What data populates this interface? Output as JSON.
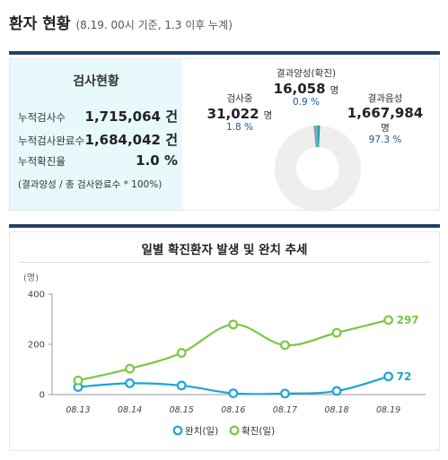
{
  "header": {
    "title": "환자 현황",
    "subtitle": "(8.19. 00시 기준, 1.3 이후 누계)"
  },
  "test_status": {
    "title": "검사현황",
    "rows": [
      {
        "label": "누적검사수",
        "value": "1,715,064 건"
      },
      {
        "label": "누적검사완료수",
        "value": "1,684,042 건"
      },
      {
        "label": "누적확진율",
        "value": "1.0 %"
      }
    ],
    "note": "(결과양성 / 총 검사완료수 * 100%)"
  },
  "donut": {
    "positive": {
      "label": "결과양성(확진)",
      "value": "16,058",
      "unit": "명",
      "pct": "0.9 %",
      "share": 0.9,
      "color": "#13a3c6"
    },
    "testing": {
      "label": "검사중",
      "value": "31,022",
      "unit": "명",
      "pct": "1.8 %",
      "share": 1.8,
      "color": "#8fa1a7"
    },
    "negative": {
      "label": "결과음성",
      "value": "1,667,984",
      "unit": "명",
      "pct": "97.3 %",
      "share": 97.3,
      "color": "#eeeeee"
    }
  },
  "chart_data": {
    "type": "line",
    "title": "일별 확진환자 발생 및 완치 추세",
    "ylabel": "(명)",
    "ylim": [
      0,
      400
    ],
    "yticks": [
      "0",
      "200",
      "400"
    ],
    "categories": [
      "08.13",
      "08.14",
      "08.15",
      "08.16",
      "08.17",
      "08.18",
      "08.19"
    ],
    "series": [
      {
        "name": "완치(일)",
        "color": "#1aa6d4",
        "values": [
          30,
          45,
          36,
          5,
          4,
          14,
          72
        ],
        "end_label": "72"
      },
      {
        "name": "확진(일)",
        "color": "#79c843",
        "values": [
          56,
          103,
          166,
          279,
          197,
          246,
          297
        ],
        "end_label": "297"
      }
    ],
    "grid": false,
    "legend": "bottom-center"
  }
}
